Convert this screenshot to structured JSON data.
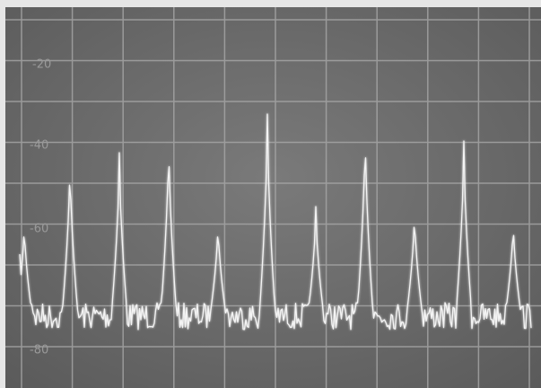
{
  "scale_labels": [
    "-20",
    "-40",
    "-60",
    "-80"
  ]
}
